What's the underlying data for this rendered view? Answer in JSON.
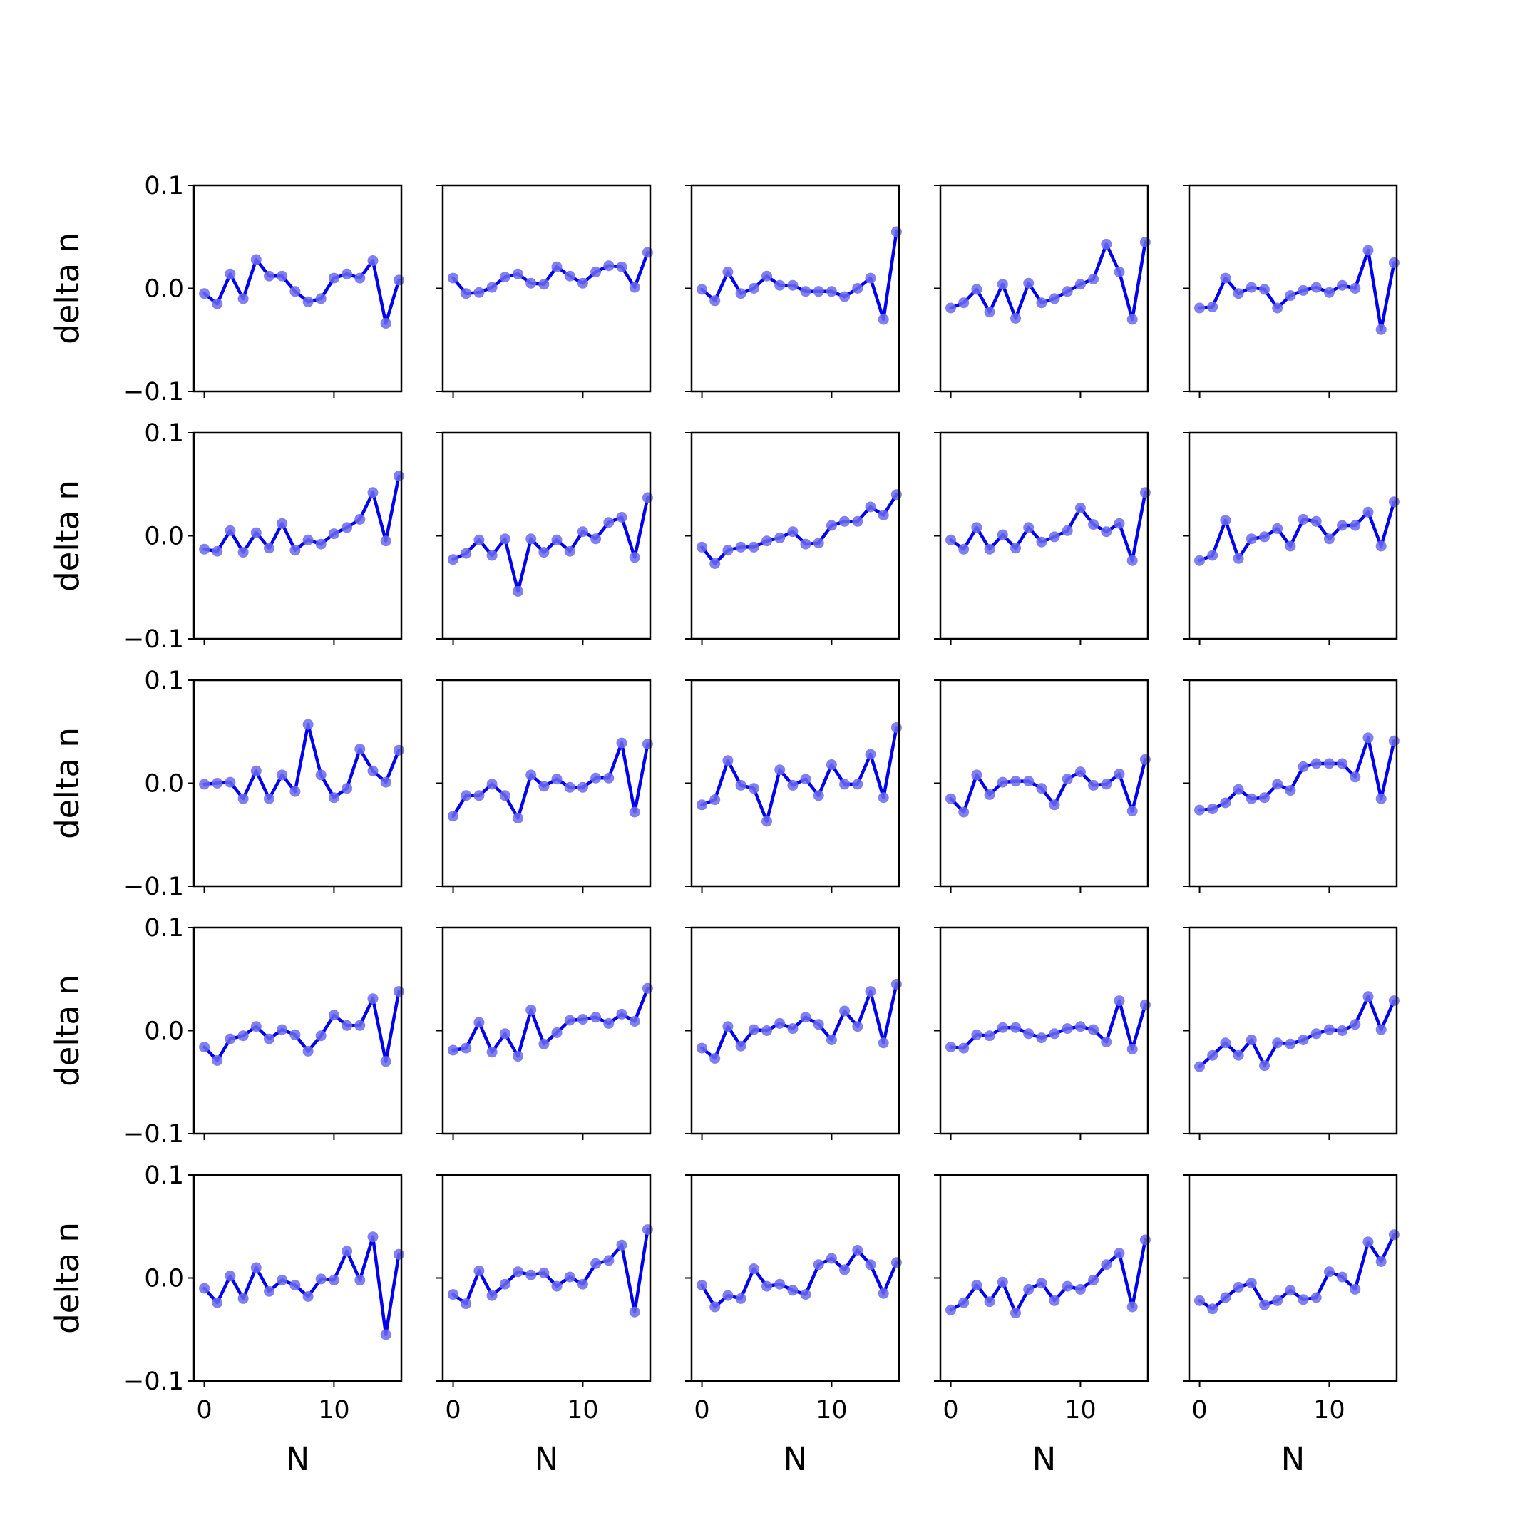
{
  "figure": {
    "ylabel": "delta n",
    "xlabel": "N",
    "line_color": "#0000ee",
    "marker_color": "#6a6aee"
  },
  "chart_data": {
    "type": "line",
    "layout": "5x5 grid of small multiples, shared x and y axes",
    "xlabel": "N",
    "ylabel": "delta n",
    "xlim": [
      -0.8,
      15.2
    ],
    "ylim": [
      -0.1,
      0.1
    ],
    "x_ticks": [
      "0",
      "10"
    ],
    "y_ticks": [
      "−0.1",
      "0.0",
      "0.1"
    ],
    "x": [
      0,
      1,
      2,
      3,
      4,
      5,
      6,
      7,
      8,
      9,
      10,
      11,
      12,
      13,
      14,
      15
    ],
    "panels": [
      [
        -0.005,
        -0.015,
        0.014,
        -0.01,
        0.028,
        0.012,
        0.012,
        -0.003,
        -0.013,
        -0.01,
        0.01,
        0.014,
        0.01,
        0.027,
        -0.034,
        0.008
      ],
      [
        0.01,
        -0.005,
        -0.004,
        0.001,
        0.011,
        0.014,
        0.005,
        0.004,
        0.021,
        0.012,
        0.005,
        0.016,
        0.022,
        0.021,
        0.001,
        0.035
      ],
      [
        -0.001,
        -0.012,
        0.016,
        -0.005,
        0.0,
        0.012,
        0.003,
        0.003,
        -0.003,
        -0.003,
        -0.003,
        -0.008,
        0.0,
        0.01,
        -0.03,
        0.055
      ],
      [
        -0.019,
        -0.014,
        -0.001,
        -0.023,
        0.004,
        -0.029,
        0.005,
        -0.014,
        -0.01,
        -0.003,
        0.004,
        0.009,
        0.043,
        0.016,
        -0.03,
        0.045
      ],
      [
        -0.019,
        -0.018,
        0.01,
        -0.005,
        0.001,
        -0.001,
        -0.019,
        -0.007,
        -0.002,
        0.001,
        -0.004,
        0.003,
        0.0,
        0.037,
        -0.04,
        0.025
      ],
      [
        -0.013,
        -0.015,
        0.005,
        -0.016,
        0.003,
        -0.012,
        0.012,
        -0.014,
        -0.004,
        -0.008,
        0.002,
        0.008,
        0.016,
        0.042,
        -0.005,
        0.058
      ],
      [
        -0.023,
        -0.017,
        -0.004,
        -0.019,
        -0.003,
        -0.054,
        -0.003,
        -0.016,
        -0.004,
        -0.015,
        0.004,
        -0.003,
        0.013,
        0.018,
        -0.021,
        0.037
      ],
      [
        -0.011,
        -0.027,
        -0.014,
        -0.011,
        -0.011,
        -0.005,
        -0.002,
        0.004,
        -0.008,
        -0.007,
        0.01,
        0.014,
        0.014,
        0.028,
        0.02,
        0.04
      ],
      [
        -0.004,
        -0.013,
        0.008,
        -0.013,
        0.001,
        -0.012,
        0.008,
        -0.006,
        -0.001,
        0.005,
        0.027,
        0.011,
        0.004,
        0.012,
        -0.024,
        0.042
      ],
      [
        -0.024,
        -0.019,
        0.015,
        -0.022,
        -0.003,
        -0.001,
        0.007,
        -0.01,
        0.016,
        0.014,
        -0.003,
        0.01,
        0.01,
        0.023,
        -0.01,
        0.033
      ],
      [
        -0.001,
        0.0,
        0.001,
        -0.015,
        0.012,
        -0.015,
        0.008,
        -0.008,
        0.057,
        0.008,
        -0.014,
        -0.005,
        0.033,
        0.012,
        0.001,
        0.032
      ],
      [
        -0.032,
        -0.012,
        -0.012,
        -0.001,
        -0.012,
        -0.034,
        0.008,
        -0.003,
        0.004,
        -0.004,
        -0.004,
        0.005,
        0.005,
        0.039,
        -0.028,
        0.038
      ],
      [
        -0.021,
        -0.016,
        0.022,
        -0.002,
        -0.005,
        -0.037,
        0.013,
        -0.002,
        0.004,
        -0.012,
        0.018,
        -0.001,
        -0.001,
        0.028,
        -0.014,
        0.054
      ],
      [
        -0.015,
        -0.028,
        0.008,
        -0.011,
        0.001,
        0.002,
        0.002,
        -0.005,
        -0.021,
        0.004,
        0.011,
        -0.002,
        -0.001,
        0.009,
        -0.027,
        0.023
      ],
      [
        -0.026,
        -0.025,
        -0.019,
        -0.006,
        -0.015,
        -0.014,
        -0.001,
        -0.007,
        0.016,
        0.019,
        0.019,
        0.019,
        0.006,
        0.044,
        -0.015,
        0.041
      ],
      [
        -0.016,
        -0.029,
        -0.008,
        -0.005,
        0.004,
        -0.008,
        0.001,
        -0.004,
        -0.02,
        -0.005,
        0.015,
        0.005,
        0.005,
        0.031,
        -0.03,
        0.038
      ],
      [
        -0.019,
        -0.017,
        0.008,
        -0.021,
        -0.003,
        -0.025,
        0.02,
        -0.013,
        -0.002,
        0.01,
        0.011,
        0.013,
        0.007,
        0.016,
        0.009,
        0.041
      ],
      [
        -0.017,
        -0.027,
        0.004,
        -0.015,
        0.001,
        0.0,
        0.007,
        0.002,
        0.013,
        0.006,
        -0.009,
        0.019,
        0.004,
        0.038,
        -0.012,
        0.045
      ],
      [
        -0.016,
        -0.017,
        -0.004,
        -0.005,
        0.003,
        0.003,
        -0.003,
        -0.007,
        -0.003,
        0.002,
        0.004,
        0.001,
        -0.011,
        0.029,
        -0.018,
        0.025
      ],
      [
        -0.035,
        -0.024,
        -0.012,
        -0.024,
        -0.009,
        -0.034,
        -0.012,
        -0.013,
        -0.009,
        -0.003,
        0.001,
        0.0,
        0.006,
        0.033,
        0.001,
        0.029
      ],
      [
        -0.01,
        -0.024,
        0.002,
        -0.02,
        0.01,
        -0.013,
        -0.002,
        -0.007,
        -0.018,
        -0.001,
        -0.002,
        0.026,
        -0.002,
        0.04,
        -0.055,
        0.023
      ],
      [
        -0.016,
        -0.025,
        0.007,
        -0.017,
        -0.006,
        0.006,
        0.003,
        0.005,
        -0.008,
        0.001,
        -0.006,
        0.014,
        0.017,
        0.032,
        -0.033,
        0.047
      ],
      [
        -0.007,
        -0.028,
        -0.017,
        -0.02,
        0.009,
        -0.008,
        -0.006,
        -0.012,
        -0.016,
        0.013,
        0.019,
        0.008,
        0.027,
        0.013,
        -0.015,
        0.015
      ],
      [
        -0.031,
        -0.024,
        -0.007,
        -0.023,
        -0.004,
        -0.034,
        -0.011,
        -0.005,
        -0.022,
        -0.008,
        -0.011,
        -0.002,
        0.013,
        0.024,
        -0.028,
        0.037
      ],
      [
        -0.022,
        -0.03,
        -0.019,
        -0.009,
        -0.005,
        -0.026,
        -0.022,
        -0.012,
        -0.021,
        -0.019,
        0.006,
        0.001,
        -0.011,
        0.035,
        0.016,
        0.042
      ]
    ]
  }
}
